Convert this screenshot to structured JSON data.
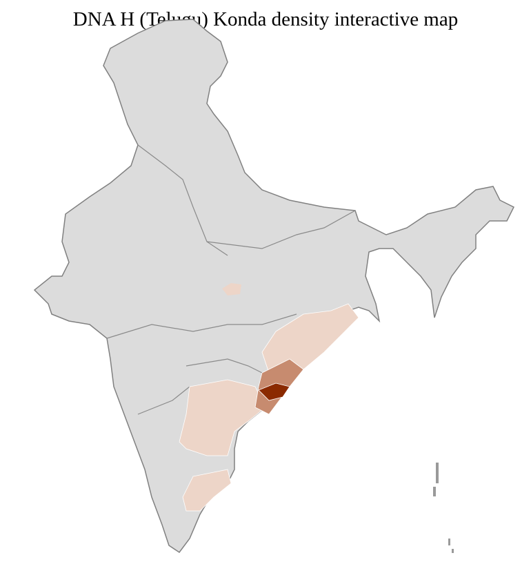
{
  "title": "DNA H (Telugu) Konda density interactive map",
  "map": {
    "colors": {
      "no_data": "#dcdcdc",
      "low": "#edd5c8",
      "medium": "#c78b6f",
      "high": "#8b2a00",
      "district_border": "#ffffff",
      "state_border": "#808080"
    },
    "highlighted_regions": [
      {
        "region": "Odisha / northern Andhra",
        "density": "low"
      },
      {
        "region": "Central India district",
        "density": "low"
      },
      {
        "region": "Andhra Pradesh interior",
        "density": "low"
      },
      {
        "region": "Tamil Nadu",
        "density": "low"
      },
      {
        "region": "Coastal Andhra",
        "density": "medium"
      },
      {
        "region": "East Godavari area",
        "density": "high"
      }
    ]
  }
}
